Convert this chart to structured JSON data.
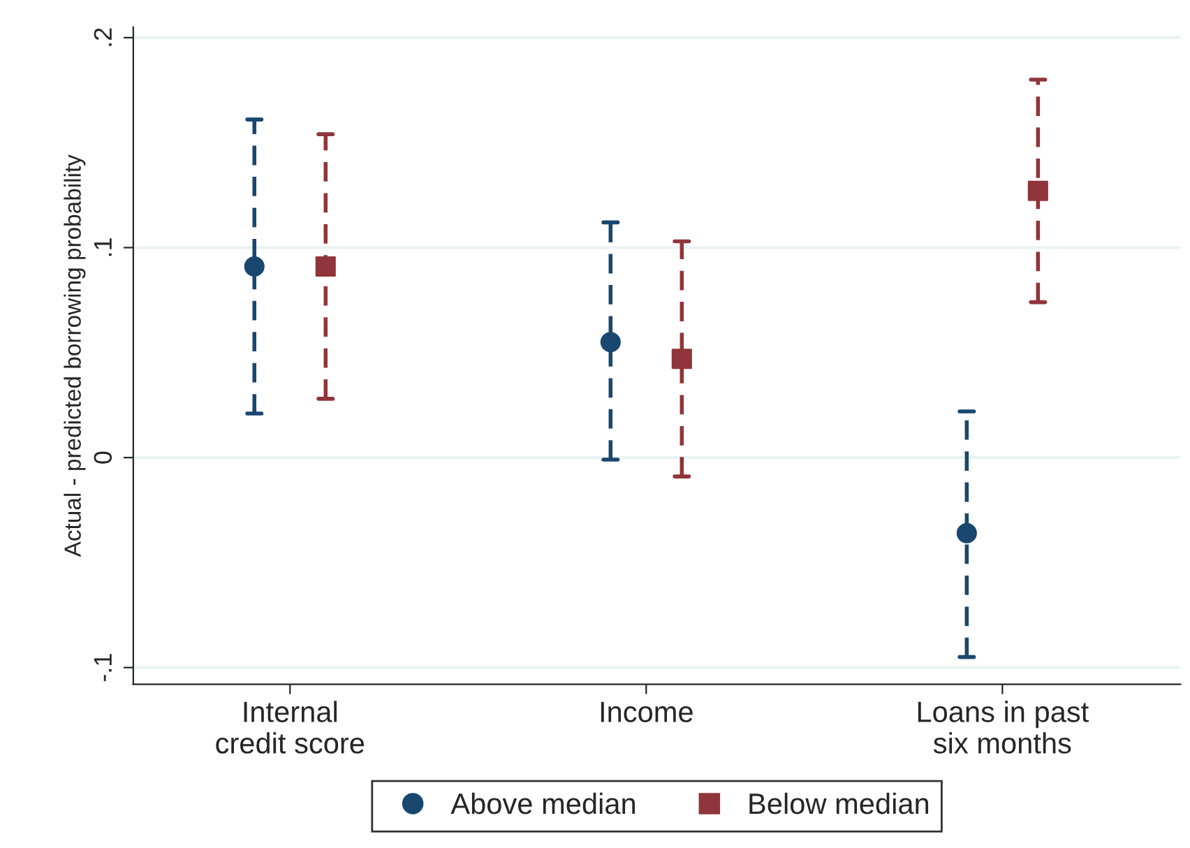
{
  "chart_data": {
    "type": "scatter",
    "ylabel": "Actual - predicted borrowing probability",
    "categories": [
      "Internal\ncredit score",
      "Income",
      "Loans in past\nsix months"
    ],
    "series": [
      {
        "name": "Above median",
        "color": "#1a476f",
        "marker": "circle",
        "values": [
          0.091,
          0.055,
          -0.036
        ],
        "errors": [
          [
            0.021,
            0.161
          ],
          [
            -0.001,
            0.112
          ],
          [
            -0.095,
            0.022
          ]
        ]
      },
      {
        "name": "Below median",
        "color": "#90353b",
        "marker": "square",
        "values": [
          0.091,
          0.047,
          0.127
        ],
        "errors": [
          [
            0.028,
            0.154
          ],
          [
            -0.009,
            0.103
          ],
          [
            0.074,
            0.18
          ]
        ]
      }
    ],
    "ylim": [
      -0.108,
      0.205
    ],
    "yticks": [
      {
        "value": -0.1,
        "label": "-.1"
      },
      {
        "value": 0,
        "label": "0"
      },
      {
        "value": 0.1,
        "label": ".1"
      },
      {
        "value": 0.2,
        "label": ".2"
      }
    ],
    "grid": "y",
    "legend": "bottom",
    "line_style": "dashed"
  }
}
